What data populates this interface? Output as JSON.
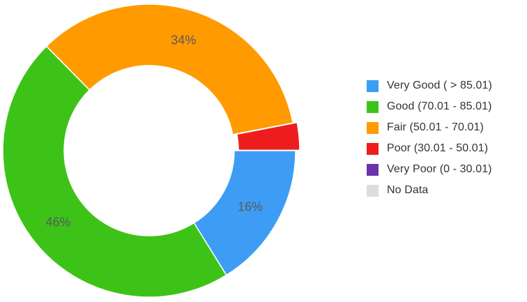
{
  "chart_data": {
    "type": "pie",
    "title": "",
    "slices": [
      {
        "name": "Very Good ( > 85.01)",
        "value": 16,
        "label": "16%",
        "color": "#3d9df5"
      },
      {
        "name": "Good (70.01 - 85.01)",
        "value": 46,
        "label": "46%",
        "color": "#3dc318"
      },
      {
        "name": "Fair (50.01 - 70.01)",
        "value": 34,
        "label": "34%",
        "color": "#ff9a00"
      },
      {
        "name": "Poor (30.01 - 50.01)",
        "value": 3,
        "label": "",
        "color": "#ee1d1d"
      },
      {
        "name": "Very Poor (0 - 30.01)",
        "value": 0,
        "label": "",
        "color": "#6a35a8"
      },
      {
        "name": "No Data",
        "value": 0,
        "label": "",
        "color": "#dddddd"
      }
    ],
    "legend_position": "right"
  }
}
